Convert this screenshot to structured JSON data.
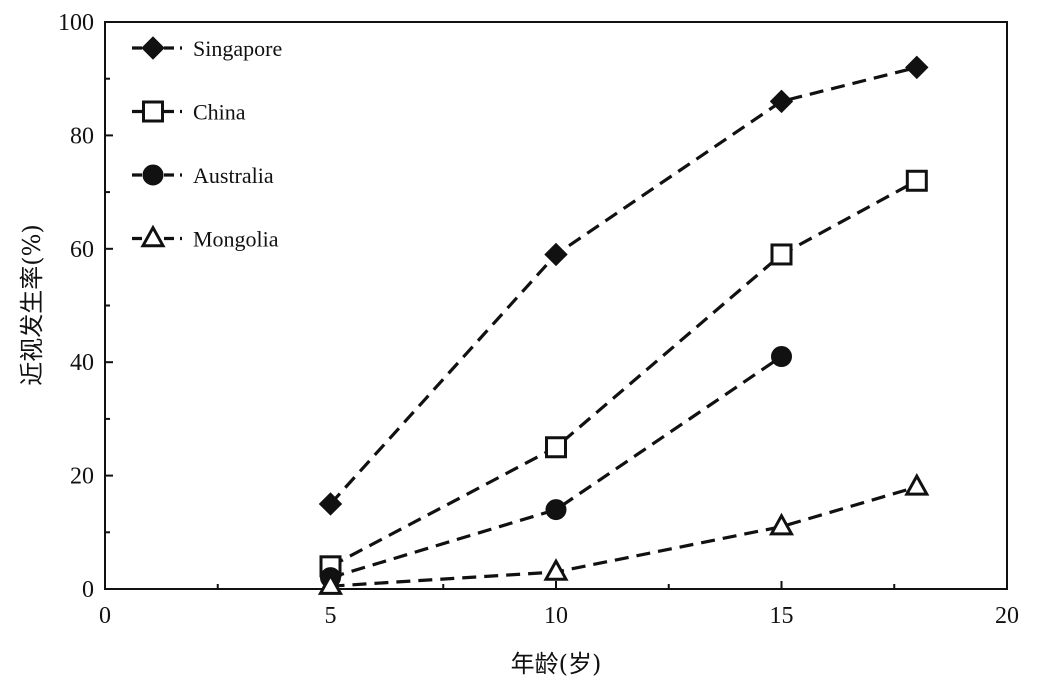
{
  "chart_data": {
    "type": "line",
    "title": "",
    "xlabel": "年龄(岁)",
    "ylabel": "近视发生率(%)",
    "xlim": [
      0,
      20
    ],
    "ylim": [
      0,
      100
    ],
    "x_ticks": [
      "0",
      "5",
      "10",
      "15",
      "20"
    ],
    "y_ticks": [
      "0",
      "20",
      "40",
      "60",
      "80",
      "100"
    ],
    "grid": false,
    "legend_position": "top-left",
    "line_style": "dashed",
    "color": "#111111",
    "series": [
      {
        "name": "Singapore",
        "marker": "diamond",
        "points": [
          {
            "x": 5,
            "y": 15
          },
          {
            "x": 10,
            "y": 59
          },
          {
            "x": 15,
            "y": 86
          },
          {
            "x": 18,
            "y": 92
          }
        ]
      },
      {
        "name": "China",
        "marker": "square",
        "points": [
          {
            "x": 5,
            "y": 4
          },
          {
            "x": 10,
            "y": 25
          },
          {
            "x": 15,
            "y": 59
          },
          {
            "x": 18,
            "y": 72
          }
        ]
      },
      {
        "name": "Australia",
        "marker": "circle",
        "points": [
          {
            "x": 5,
            "y": 2
          },
          {
            "x": 10,
            "y": 14
          },
          {
            "x": 15,
            "y": 41
          }
        ]
      },
      {
        "name": "Mongolia",
        "marker": "triangle",
        "points": [
          {
            "x": 5,
            "y": 0.5
          },
          {
            "x": 10,
            "y": 3
          },
          {
            "x": 15,
            "y": 11
          },
          {
            "x": 18,
            "y": 18
          }
        ]
      }
    ]
  }
}
